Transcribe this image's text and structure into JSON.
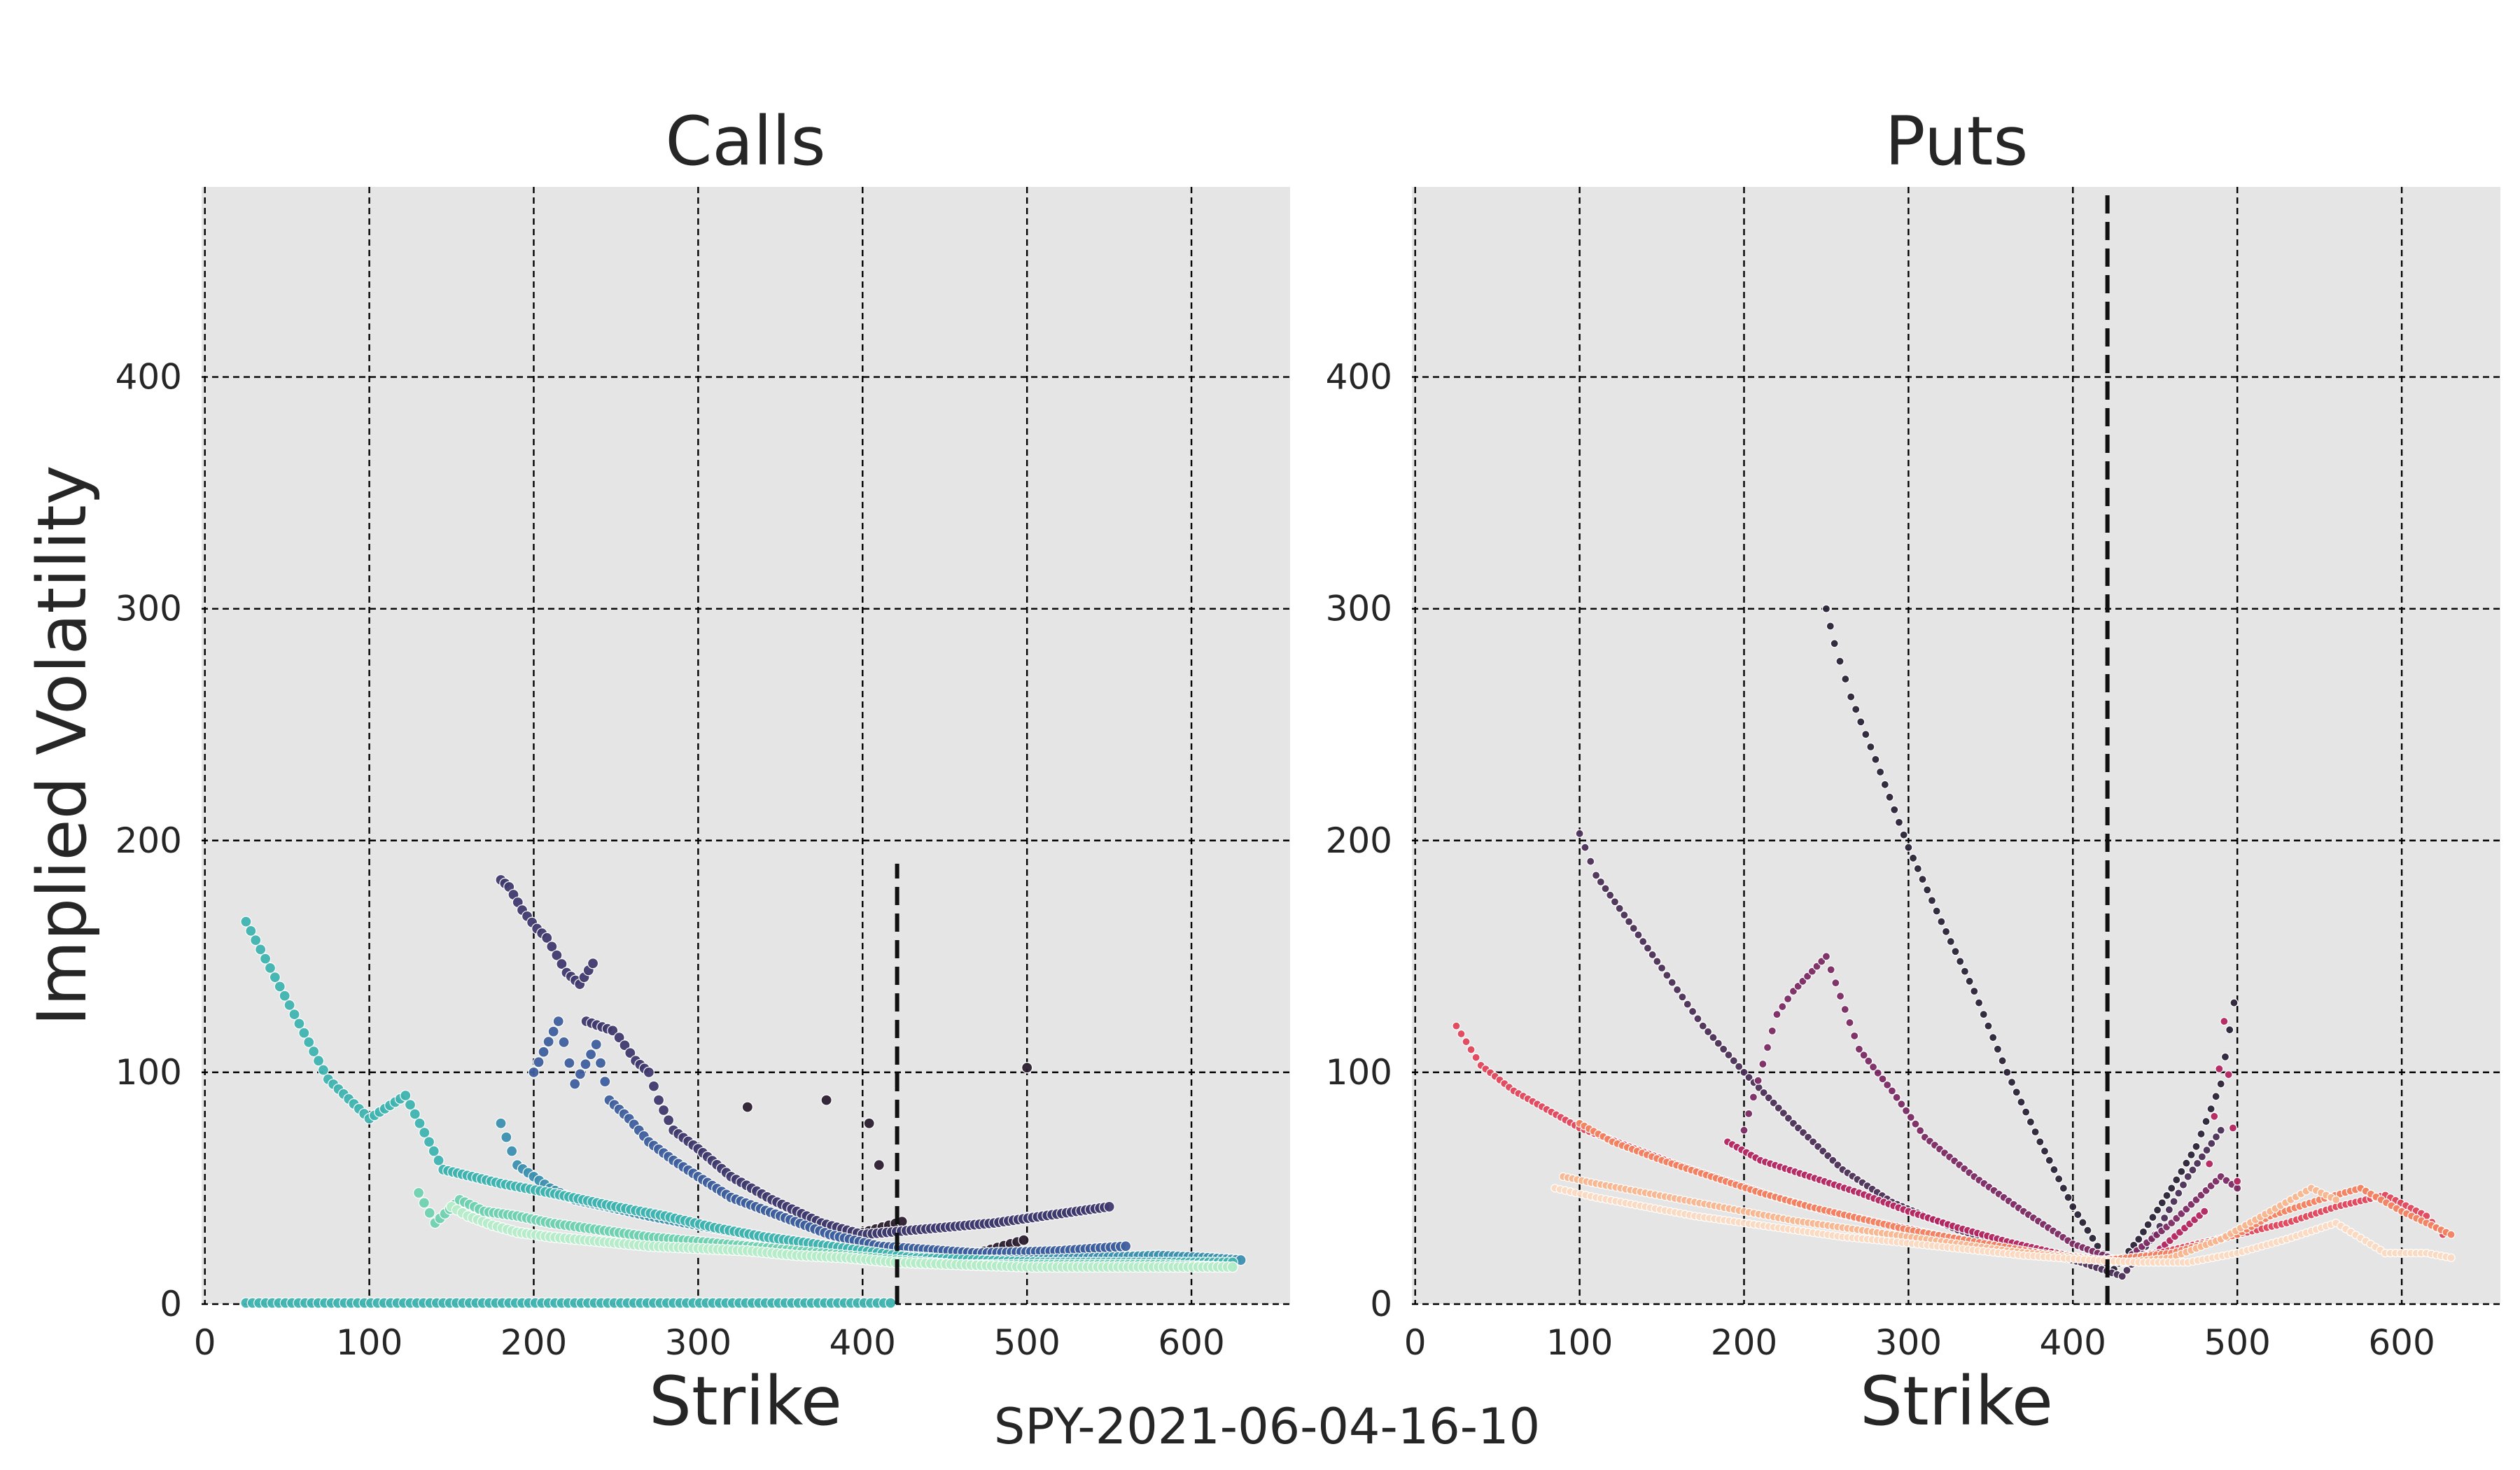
{
  "figure": {
    "suptitle": "SPY-2021-06-04-16-10",
    "ylabel": "Implied Volatility"
  },
  "chart_data": [
    {
      "type": "scatter",
      "panel": "calls",
      "title": "Calls",
      "xlabel": "Strike",
      "ylabel": "Implied Volatility",
      "xlim": [
        -2,
        660
      ],
      "ylim": [
        0,
        482
      ],
      "xticks": [
        0,
        100,
        200,
        300,
        400,
        500,
        600
      ],
      "yticks": [
        0,
        100,
        200,
        300,
        400
      ],
      "grid": true,
      "spot_marker": {
        "x": 421,
        "y_range": [
          0,
          190
        ]
      },
      "palette": [
        "#2b1f2f",
        "#3f3a6e",
        "#3e5f9e",
        "#3c8fb0",
        "#3fb3b0",
        "#6fd1b0",
        "#b5ecc8"
      ],
      "series": [
        {
          "color": "#2b1f2f",
          "style": "fan",
          "x": [
            396,
            470,
            520
          ],
          "y": [
            30,
            22,
            18
          ],
          "outliers": [
            [
              404,
              78
            ],
            [
              410,
              60
            ],
            [
              378,
              88
            ],
            [
              330,
              85
            ],
            [
              500,
              102
            ]
          ]
        },
        {
          "color": "#3f3a6e",
          "points": [
            [
              180,
              183
            ],
            [
              185,
              180
            ],
            [
              193,
              170
            ],
            [
              202,
              162
            ],
            [
              208,
              158
            ],
            [
              220,
              143
            ],
            [
              228,
              138
            ],
            [
              236,
              147
            ],
            [
              232,
              122
            ],
            [
              248,
              118
            ],
            [
              252,
              115
            ],
            [
              262,
              105
            ],
            [
              270,
              100
            ],
            [
              276,
              88
            ],
            [
              285,
              75
            ],
            [
              300,
              67
            ],
            [
              320,
              55
            ],
            [
              345,
              45
            ],
            [
              375,
              35
            ],
            [
              400,
              30
            ],
            [
              480,
              35
            ],
            [
              530,
              40
            ],
            [
              550,
              42
            ]
          ]
        },
        {
          "color": "#3e5f9e",
          "points": [
            [
              200,
              100
            ],
            [
              215,
              122
            ],
            [
              225,
              95
            ],
            [
              238,
              112
            ],
            [
              246,
              88
            ],
            [
              258,
              80
            ],
            [
              270,
              70
            ],
            [
              285,
              62
            ],
            [
              300,
              55
            ],
            [
              320,
              46
            ],
            [
              350,
              38
            ],
            [
              380,
              30
            ],
            [
              410,
              25
            ],
            [
              470,
              22
            ],
            [
              520,
              23
            ],
            [
              560,
              25
            ]
          ]
        },
        {
          "color": "#3c8fb0",
          "points": [
            [
              180,
              78
            ],
            [
              190,
              60
            ],
            [
              200,
              55
            ],
            [
              210,
              50
            ],
            [
              225,
              45
            ],
            [
              245,
              42
            ],
            [
              270,
              38
            ],
            [
              300,
              34
            ],
            [
              330,
              30
            ],
            [
              360,
              27
            ],
            [
              390,
              24
            ],
            [
              420,
              21
            ],
            [
              460,
              19
            ],
            [
              500,
              19
            ],
            [
              540,
              20
            ],
            [
              580,
              21
            ],
            [
              610,
              20
            ],
            [
              630,
              19
            ]
          ]
        },
        {
          "color": "#3fb3b0",
          "points": [
            [
              25,
              165
            ],
            [
              75,
              97
            ],
            [
              100,
              80
            ],
            [
              122,
              90
            ],
            [
              145,
              58
            ],
            [
              180,
              52
            ],
            [
              195,
              50
            ],
            [
              210,
              48
            ],
            [
              230,
              45
            ],
            [
              250,
              42
            ],
            [
              280,
              38
            ],
            [
              310,
              33
            ],
            [
              340,
              29
            ],
            [
              370,
              26
            ],
            [
              400,
              23
            ],
            [
              430,
              20
            ],
            [
              470,
              19
            ],
            [
              510,
              18
            ],
            [
              550,
              18
            ],
            [
              590,
              18
            ],
            [
              625,
              18
            ]
          ]
        },
        {
          "color": "#6fd1b0",
          "points": [
            [
              130,
              48
            ],
            [
              140,
              35
            ],
            [
              155,
              45
            ],
            [
              170,
              40
            ],
            [
              190,
              38
            ],
            [
              210,
              35
            ],
            [
              240,
              32
            ],
            [
              270,
              29
            ],
            [
              300,
              27
            ],
            [
              330,
              25
            ],
            [
              360,
              23
            ],
            [
              390,
              21
            ],
            [
              420,
              19
            ],
            [
              460,
              17
            ],
            [
              500,
              17
            ],
            [
              540,
              17
            ],
            [
              580,
              17
            ],
            [
              625,
              16
            ]
          ]
        },
        {
          "color": "#b5ecc8",
          "points": [
            [
              150,
              42
            ],
            [
              160,
              38
            ],
            [
              175,
              34
            ],
            [
              190,
              31
            ],
            [
              210,
              29
            ],
            [
              240,
              27
            ],
            [
              270,
              25
            ],
            [
              300,
              24
            ],
            [
              330,
              23
            ],
            [
              360,
              21
            ],
            [
              390,
              20
            ],
            [
              420,
              18
            ],
            [
              460,
              17
            ],
            [
              500,
              16
            ],
            [
              540,
              16
            ],
            [
              580,
              16
            ],
            [
              625,
              16
            ]
          ]
        },
        {
          "color": "#3fb3b0",
          "style": "floor",
          "range": [
            25,
            420
          ],
          "y": 0.5
        }
      ]
    },
    {
      "type": "scatter",
      "panel": "puts",
      "title": "Puts",
      "xlabel": "Strike",
      "ylabel": "",
      "xlim": [
        -2,
        660
      ],
      "ylim": [
        0,
        482
      ],
      "xticks": [
        0,
        100,
        200,
        300,
        400,
        500,
        600
      ],
      "yticks": [
        0,
        100,
        200,
        300,
        400
      ],
      "grid": true,
      "spot_marker": {
        "x": 421,
        "y_range": [
          0,
          480
        ]
      },
      "palette": [
        "#2a2236",
        "#4a2f55",
        "#7a2a62",
        "#b3245f",
        "#e0455a",
        "#f2805f",
        "#f8b58f",
        "#fbd9c0"
      ],
      "series": [
        {
          "color": "#2a2236",
          "points": [
            [
              250,
              300
            ],
            [
              255,
              285
            ],
            [
              265,
              262
            ],
            [
              280,
              235
            ],
            [
              300,
              197
            ],
            [
              320,
              165
            ],
            [
              340,
              135
            ],
            [
              360,
              100
            ],
            [
              380,
              70
            ],
            [
              400,
              42
            ],
            [
              415,
              25
            ],
            [
              425,
              15
            ],
            [
              440,
              28
            ],
            [
              460,
              50
            ],
            [
              475,
              68
            ],
            [
              490,
              95
            ],
            [
              498,
              130
            ]
          ]
        },
        {
          "color": "#4a2f55",
          "points": [
            [
              100,
              203
            ],
            [
              110,
              185
            ],
            [
              130,
              165
            ],
            [
              150,
              145
            ],
            [
              175,
              120
            ],
            [
              200,
              100
            ],
            [
              230,
              78
            ],
            [
              260,
              58
            ],
            [
              290,
              44
            ],
            [
              330,
              32
            ],
            [
              370,
              24
            ],
            [
              405,
              18
            ],
            [
              430,
              12
            ],
            [
              450,
              30
            ],
            [
              470,
              55
            ],
            [
              490,
              75
            ]
          ]
        },
        {
          "color": "#7a2a62",
          "points": [
            [
              200,
              75
            ],
            [
              220,
              125
            ],
            [
              230,
              135
            ],
            [
              250,
              150
            ],
            [
              270,
              110
            ],
            [
              290,
              92
            ],
            [
              310,
              72
            ],
            [
              340,
              55
            ],
            [
              370,
              40
            ],
            [
              400,
              26
            ],
            [
              430,
              18
            ],
            [
              460,
              35
            ],
            [
              490,
              55
            ],
            [
              500,
              50
            ]
          ]
        },
        {
          "color": "#b3245f",
          "points": [
            [
              190,
              70
            ],
            [
              210,
              62
            ],
            [
              240,
              55
            ],
            [
              270,
              48
            ],
            [
              300,
              40
            ],
            [
              330,
              33
            ],
            [
              360,
              27
            ],
            [
              390,
              22
            ],
            [
              420,
              18
            ],
            [
              450,
              22
            ],
            [
              480,
              40
            ],
            [
              492,
              122
            ],
            [
              500,
              53
            ]
          ]
        },
        {
          "color": "#e0455a",
          "points": [
            [
              25,
              120
            ],
            [
              40,
              103
            ],
            [
              60,
              92
            ],
            [
              80,
              84
            ],
            [
              100,
              76
            ],
            [
              130,
              68
            ],
            [
              160,
              60
            ],
            [
              190,
              53
            ],
            [
              220,
              46
            ],
            [
              250,
              40
            ],
            [
              290,
              34
            ],
            [
              330,
              28
            ],
            [
              370,
              23
            ],
            [
              410,
              19
            ],
            [
              440,
              20
            ],
            [
              470,
              25
            ],
            [
              500,
              30
            ],
            [
              530,
              35
            ],
            [
              560,
              42
            ],
            [
              590,
              47
            ],
            [
              615,
              38
            ],
            [
              625,
              30
            ]
          ]
        },
        {
          "color": "#f2805f",
          "points": [
            [
              100,
              78
            ],
            [
              120,
              70
            ],
            [
              150,
              62
            ],
            [
              180,
              55
            ],
            [
              210,
              48
            ],
            [
              240,
              42
            ],
            [
              270,
              37
            ],
            [
              300,
              32
            ],
            [
              340,
              27
            ],
            [
              380,
              22
            ],
            [
              420,
              19
            ],
            [
              460,
              22
            ],
            [
              500,
              30
            ],
            [
              520,
              38
            ],
            [
              550,
              45
            ],
            [
              575,
              50
            ],
            [
              600,
              40
            ],
            [
              630,
              30
            ]
          ]
        },
        {
          "color": "#f8b58f",
          "points": [
            [
              90,
              55
            ],
            [
              110,
              52
            ],
            [
              140,
              48
            ],
            [
              170,
              44
            ],
            [
              200,
              40
            ],
            [
              230,
              36
            ],
            [
              260,
              33
            ],
            [
              290,
              30
            ],
            [
              320,
              27
            ],
            [
              360,
              23
            ],
            [
              400,
              20
            ],
            [
              430,
              18
            ],
            [
              460,
              20
            ],
            [
              490,
              28
            ],
            [
              520,
              40
            ],
            [
              545,
              50
            ],
            [
              560,
              45
            ]
          ]
        },
        {
          "color": "#fbd9c0",
          "points": [
            [
              85,
              50
            ],
            [
              110,
              46
            ],
            [
              140,
              42
            ],
            [
              170,
              38
            ],
            [
              200,
              35
            ],
            [
              230,
              32
            ],
            [
              260,
              29
            ],
            [
              290,
              27
            ],
            [
              330,
              24
            ],
            [
              370,
              21
            ],
            [
              410,
              19
            ],
            [
              440,
              18
            ],
            [
              470,
              18
            ],
            [
              500,
              22
            ],
            [
              530,
              28
            ],
            [
              560,
              35
            ],
            [
              590,
              22
            ],
            [
              615,
              22
            ],
            [
              630,
              20
            ]
          ]
        }
      ]
    }
  ]
}
